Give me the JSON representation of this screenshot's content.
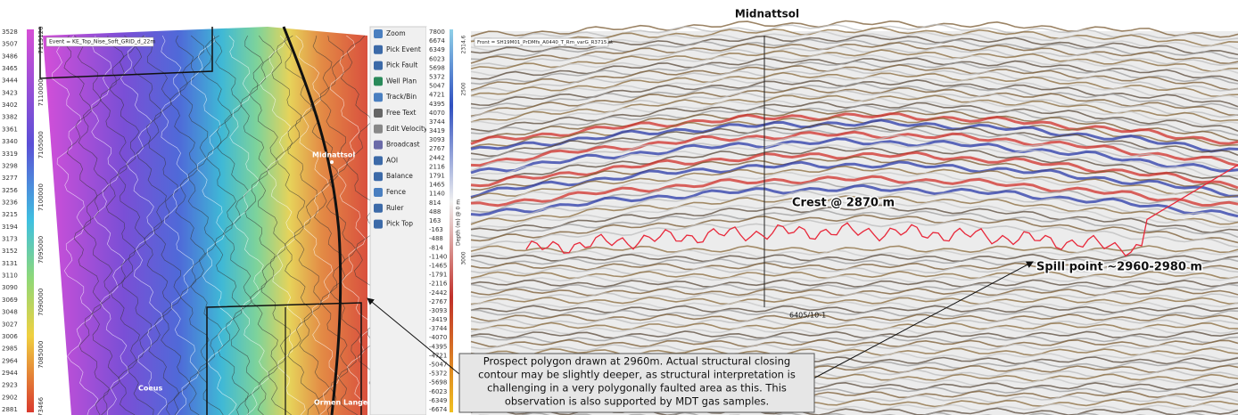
{
  "title": "Midnattsol",
  "map": {
    "event_label": "Event = KE_Top_Nise_Soft_GRID_d_22m",
    "colorbar_labels": [
      3528,
      3507,
      3486,
      3465,
      3444,
      3423,
      3402,
      3382,
      3361,
      3340,
      3319,
      3298,
      3277,
      3256,
      3236,
      3215,
      3194,
      3173,
      3152,
      3131,
      3110,
      3090,
      3069,
      3048,
      3027,
      3006,
      2985,
      2964,
      2944,
      2923,
      2902,
      2881
    ],
    "y_axis_labels": [
      "7115120",
      "7110000",
      "7105000",
      "7100000",
      "7095000",
      "7090000",
      "7085000",
      "73466"
    ],
    "places": [
      "Midnattsol",
      "Coeus",
      "Ormen Lange"
    ]
  },
  "toolbar": {
    "items": [
      "Zoom",
      "Pick Event",
      "Pick Fault",
      "Well Plan",
      "Track/Bin",
      "Free Text",
      "Edit Velocity",
      "Broadcast",
      "AOI",
      "Balance",
      "Fence",
      "Ruler",
      "Pick Top"
    ]
  },
  "seismic": {
    "front_label": "Front = SH19M01_PrDMfs_A0440_T_Rm_varG_R3715.st",
    "amplitude_labels": [
      7800,
      6674,
      6349,
      6023,
      5698,
      5372,
      5047,
      4721,
      4395,
      4070,
      3744,
      3419,
      3093,
      2767,
      2442,
      2116,
      1791,
      1465,
      1140,
      814,
      488,
      163,
      -163,
      -488,
      -814,
      -1140,
      -1465,
      -1791,
      -2116,
      -2442,
      -2767,
      -3093,
      -3419,
      -3744,
      -4070,
      -4395,
      -4721,
      -5047,
      -5372,
      -5698,
      -6023,
      -6349,
      -6674
    ],
    "depth_axis_title": "Depth (m) @ 0 m",
    "depth_labels": [
      "2314.6",
      "2500",
      "3000"
    ],
    "well_label": "6405/10-1",
    "crest_label": "Crest @ 2870 m",
    "spill_label": "Spill point ~2960-2980 m"
  },
  "annotation": {
    "lines": [
      "Prospect polygon drawn at 2960m. Actual structural closing",
      "contour may be slightly deeper, as structural interpretation is",
      "challenging in a very polygonally faulted area as this. This",
      "observation is also supported by MDT gas samples."
    ]
  }
}
